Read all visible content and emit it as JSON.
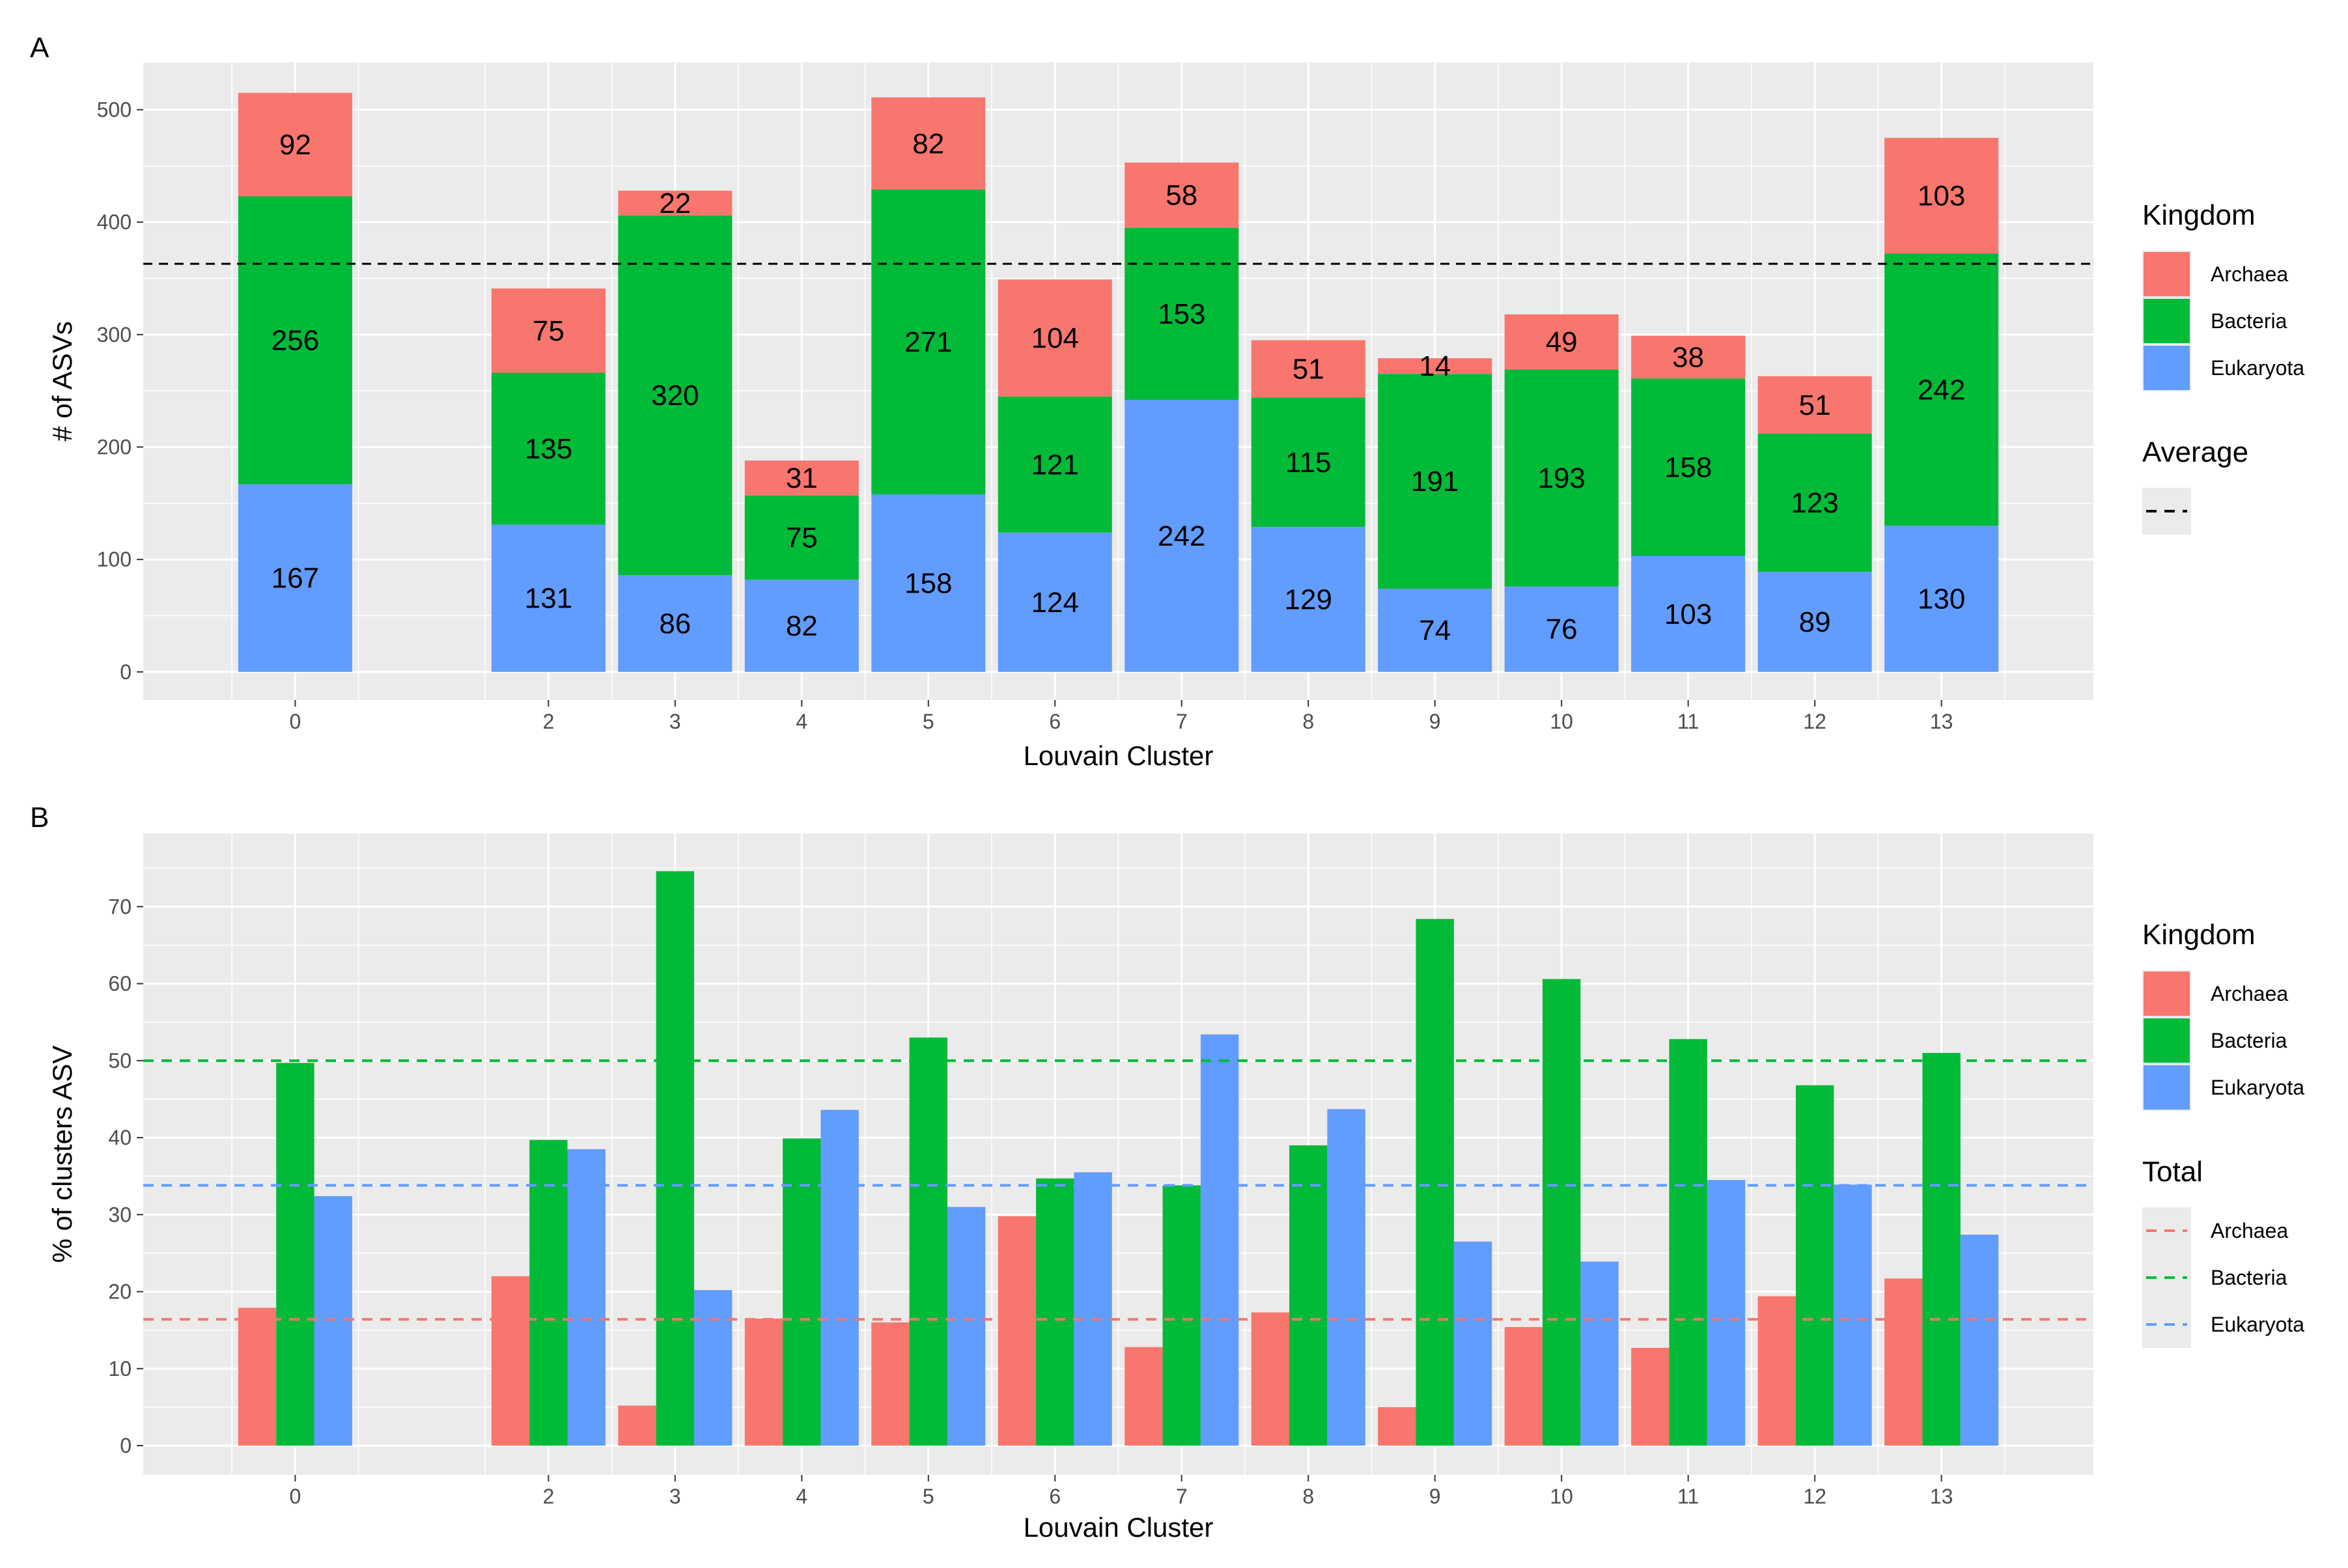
{
  "figure": {
    "panels": [
      "A",
      "B"
    ]
  },
  "colors": {
    "Archaea": "#F8766D",
    "Bacteria": "#00BA38",
    "Eukaryota": "#619CFF",
    "panel_bg": "#EBEBEB",
    "grid": "#FFFFFF",
    "tick_text": "#4D4D4D"
  },
  "chart_data": [
    {
      "panel": "A",
      "type": "bar",
      "stacked": true,
      "xlabel": "Louvain Cluster",
      "ylabel": "# of ASVs",
      "ylim": [
        -25,
        542
      ],
      "yticks": [
        0,
        100,
        200,
        300,
        400,
        500
      ],
      "x_range": [
        -1.2,
        14.2
      ],
      "categories": [
        "0",
        "2",
        "3",
        "4",
        "5",
        "6",
        "7",
        "8",
        "9",
        "10",
        "11",
        "12",
        "13"
      ],
      "x": [
        0,
        2,
        3,
        4,
        5,
        6,
        7,
        8,
        9,
        10,
        11,
        12,
        13
      ],
      "series": [
        {
          "name": "Eukaryota",
          "values": [
            167,
            131,
            86,
            82,
            158,
            124,
            242,
            129,
            74,
            76,
            103,
            89,
            130
          ]
        },
        {
          "name": "Bacteria",
          "values": [
            256,
            135,
            320,
            75,
            271,
            121,
            153,
            115,
            191,
            193,
            158,
            123,
            242
          ]
        },
        {
          "name": "Archaea",
          "values": [
            92,
            75,
            22,
            31,
            82,
            104,
            58,
            51,
            14,
            49,
            38,
            51,
            103
          ]
        }
      ],
      "average": 363,
      "grid": true,
      "legend": {
        "placement": "right",
        "fill_title": "Kingdom",
        "fill_items": [
          "Archaea",
          "Bacteria",
          "Eukaryota"
        ],
        "line_title": "Average",
        "line_items": [
          ""
        ]
      }
    },
    {
      "panel": "B",
      "type": "bar",
      "grouped": true,
      "xlabel": "Louvain Cluster",
      "ylabel": "% of clusters ASV",
      "ylim": [
        -3.8,
        79.5
      ],
      "yticks": [
        0,
        10,
        20,
        30,
        40,
        50,
        60,
        70
      ],
      "x_range": [
        -1.2,
        14.2
      ],
      "categories": [
        "0",
        "2",
        "3",
        "4",
        "5",
        "6",
        "7",
        "8",
        "9",
        "10",
        "11",
        "12",
        "13"
      ],
      "x": [
        0,
        2,
        3,
        4,
        5,
        6,
        7,
        8,
        9,
        10,
        11,
        12,
        13
      ],
      "series": [
        {
          "name": "Archaea",
          "values": [
            17.9,
            22.0,
            5.2,
            16.5,
            16.0,
            29.8,
            12.8,
            17.3,
            5.0,
            15.4,
            12.7,
            19.4,
            21.7
          ]
        },
        {
          "name": "Bacteria",
          "values": [
            49.7,
            39.7,
            74.6,
            39.9,
            53.0,
            34.7,
            33.8,
            39.0,
            68.4,
            60.6,
            52.8,
            46.8,
            51.0
          ]
        },
        {
          "name": "Eukaryota",
          "values": [
            32.4,
            38.5,
            20.2,
            43.6,
            31.0,
            35.5,
            53.4,
            43.7,
            26.5,
            23.9,
            34.5,
            33.9,
            27.4
          ]
        }
      ],
      "totals": [
        {
          "name": "Archaea",
          "value": 16.4
        },
        {
          "name": "Bacteria",
          "value": 50.0
        },
        {
          "name": "Eukaryota",
          "value": 33.8
        }
      ],
      "grid": true,
      "legend": {
        "placement": "right",
        "fill_title": "Kingdom",
        "fill_items": [
          "Archaea",
          "Bacteria",
          "Eukaryota"
        ],
        "line_title": "Total",
        "line_items": [
          "Archaea",
          "Bacteria",
          "Eukaryota"
        ]
      }
    }
  ]
}
